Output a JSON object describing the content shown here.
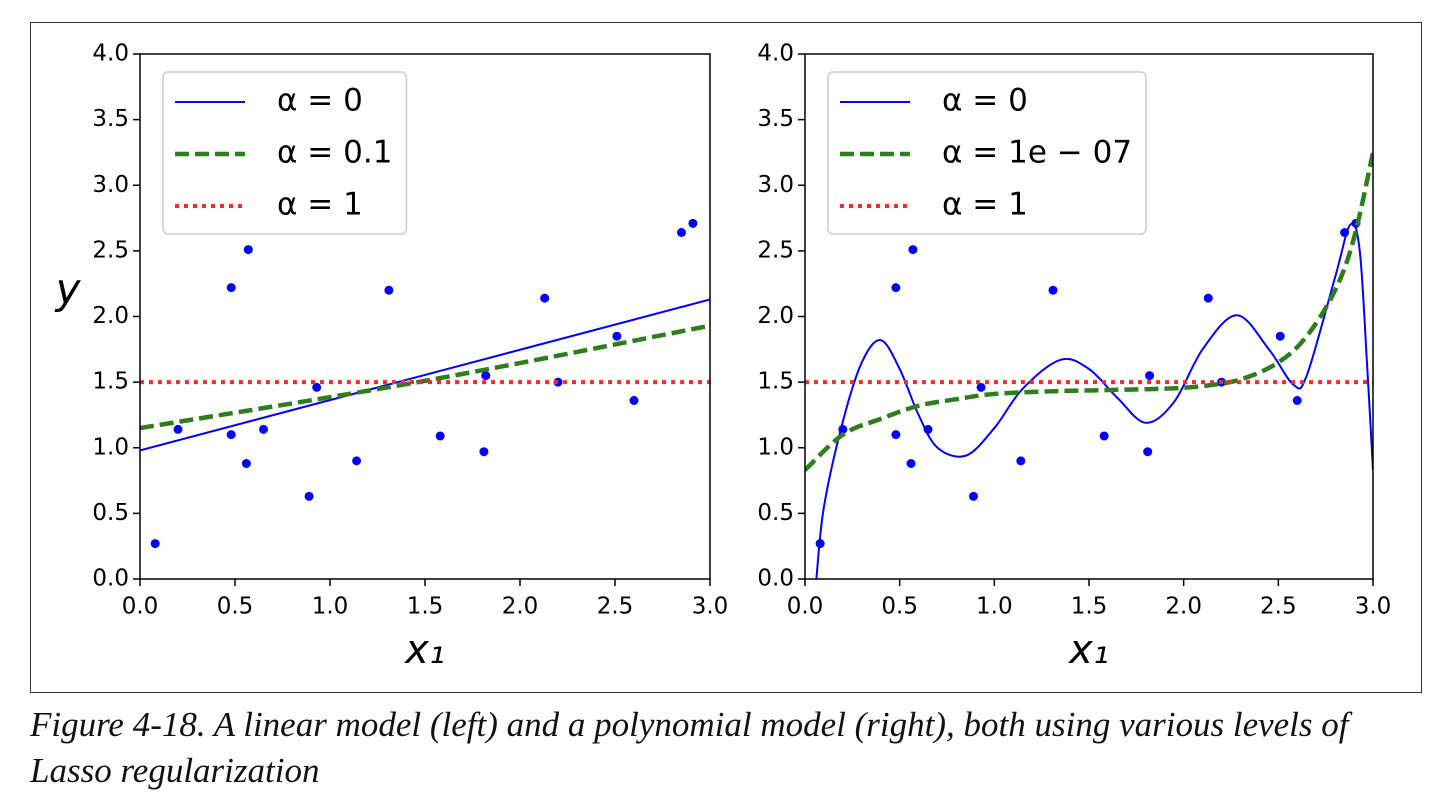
{
  "chart_data": [
    {
      "type": "line",
      "xlabel": "x₁",
      "ylabel": "y",
      "legend": "upper left",
      "xlim": [
        0,
        3
      ],
      "ylim": [
        0,
        4
      ],
      "xticks": [
        {
          "value": 0,
          "label": "0.0"
        },
        {
          "value": 0.5,
          "label": "0.5"
        },
        {
          "value": 1,
          "label": "1.0"
        },
        {
          "value": 1.5,
          "label": "1.5"
        },
        {
          "value": 2,
          "label": "2.0"
        },
        {
          "value": 2.5,
          "label": "2.5"
        },
        {
          "value": 3,
          "label": "3.0"
        }
      ],
      "yticks": [
        {
          "value": 0,
          "label": "0.0"
        },
        {
          "value": 0.5,
          "label": "0.5"
        },
        {
          "value": 1,
          "label": "1.0"
        },
        {
          "value": 1.5,
          "label": "1.5"
        },
        {
          "value": 2,
          "label": "2.0"
        },
        {
          "value": 2.5,
          "label": "2.5"
        },
        {
          "value": 3,
          "label": "3.0"
        },
        {
          "value": 3.5,
          "label": "3.5"
        },
        {
          "value": 4,
          "label": "4.0"
        }
      ],
      "scatter": {
        "color": "#0000ff",
        "x": [
          0.08,
          0.2,
          0.48,
          0.48,
          0.57,
          0.56,
          0.65,
          0.89,
          0.93,
          1.14,
          1.31,
          1.58,
          1.81,
          1.82,
          2.13,
          2.2,
          2.51,
          2.6,
          2.85,
          2.91
        ],
        "y": [
          0.27,
          1.14,
          2.22,
          1.1,
          2.51,
          0.88,
          1.14,
          0.63,
          1.46,
          0.9,
          2.2,
          1.09,
          0.97,
          1.55,
          2.14,
          1.5,
          1.85,
          1.36,
          2.64,
          2.71
        ]
      },
      "series": [
        {
          "name": "α = 0",
          "color": "#0000ff",
          "dash": "solid",
          "x": [
            0,
            3
          ],
          "values": [
            0.98,
            2.13
          ]
        },
        {
          "name": "α = 0.1",
          "color": "#2e7d1e",
          "dash": "dashed",
          "x": [
            0,
            1.5,
            3
          ],
          "values": [
            1.15,
            1.51,
            1.93
          ]
        },
        {
          "name": "α = 1",
          "color": "#e8302a",
          "dash": "dotted",
          "x": [
            0,
            3
          ],
          "values": [
            1.5,
            1.5
          ]
        }
      ]
    },
    {
      "type": "line",
      "xlabel": "x₁",
      "legend": "upper left",
      "xlim": [
        0,
        3
      ],
      "ylim": [
        0,
        4
      ],
      "xticks": [
        {
          "value": 0,
          "label": "0.0"
        },
        {
          "value": 0.5,
          "label": "0.5"
        },
        {
          "value": 1,
          "label": "1.0"
        },
        {
          "value": 1.5,
          "label": "1.5"
        },
        {
          "value": 2,
          "label": "2.0"
        },
        {
          "value": 2.5,
          "label": "2.5"
        },
        {
          "value": 3,
          "label": "3.0"
        }
      ],
      "yticks": [
        {
          "value": 0,
          "label": "0.0"
        },
        {
          "value": 0.5,
          "label": "0.5"
        },
        {
          "value": 1,
          "label": "1.0"
        },
        {
          "value": 1.5,
          "label": "1.5"
        },
        {
          "value": 2,
          "label": "2.0"
        },
        {
          "value": 2.5,
          "label": "2.5"
        },
        {
          "value": 3,
          "label": "3.0"
        },
        {
          "value": 3.5,
          "label": "3.5"
        },
        {
          "value": 4,
          "label": "4.0"
        }
      ],
      "scatter": {
        "color": "#0000ff",
        "x": [
          0.08,
          0.2,
          0.48,
          0.48,
          0.57,
          0.56,
          0.65,
          0.89,
          0.93,
          1.14,
          1.31,
          1.58,
          1.81,
          1.82,
          2.13,
          2.2,
          2.51,
          2.6,
          2.85,
          2.91
        ],
        "y": [
          0.27,
          1.14,
          2.22,
          1.1,
          2.51,
          0.88,
          1.14,
          0.63,
          1.46,
          0.9,
          2.2,
          1.09,
          0.97,
          1.55,
          2.14,
          1.5,
          1.85,
          1.36,
          2.64,
          2.71
        ]
      },
      "series": [
        {
          "name": "α = 0",
          "color": "#0000ff",
          "dash": "solid",
          "x": [
            0.06,
            0.1,
            0.2,
            0.3,
            0.4,
            0.5,
            0.6,
            0.7,
            0.85,
            1.0,
            1.15,
            1.35,
            1.5,
            1.65,
            1.8,
            1.95,
            2.1,
            2.28,
            2.45,
            2.58,
            2.65,
            2.8,
            2.88,
            2.93,
            2.97,
            3.0
          ],
          "values": [
            0.0,
            0.55,
            1.2,
            1.65,
            1.82,
            1.6,
            1.25,
            1.0,
            0.94,
            1.15,
            1.45,
            1.67,
            1.6,
            1.38,
            1.19,
            1.35,
            1.75,
            2.01,
            1.75,
            1.48,
            1.55,
            2.3,
            2.7,
            2.5,
            1.6,
            0.83
          ]
        },
        {
          "name": "α = 1e − 07",
          "color": "#2e7d1e",
          "dash": "dashed",
          "x": [
            0,
            0.2,
            0.4,
            0.6,
            0.8,
            1.0,
            1.3,
            1.6,
            1.9,
            2.1,
            2.3,
            2.5,
            2.65,
            2.8,
            2.9,
            3.0
          ],
          "values": [
            0.83,
            1.1,
            1.22,
            1.32,
            1.37,
            1.41,
            1.43,
            1.44,
            1.45,
            1.47,
            1.52,
            1.65,
            1.85,
            2.2,
            2.6,
            3.25
          ]
        },
        {
          "name": "α = 1",
          "color": "#e8302a",
          "dash": "dotted",
          "x": [
            0,
            3
          ],
          "values": [
            1.5,
            1.5
          ]
        }
      ]
    }
  ],
  "caption": "Figure 4-18. A linear model (left) and a polynomial model (right), both using various levels of Lasso regularization"
}
